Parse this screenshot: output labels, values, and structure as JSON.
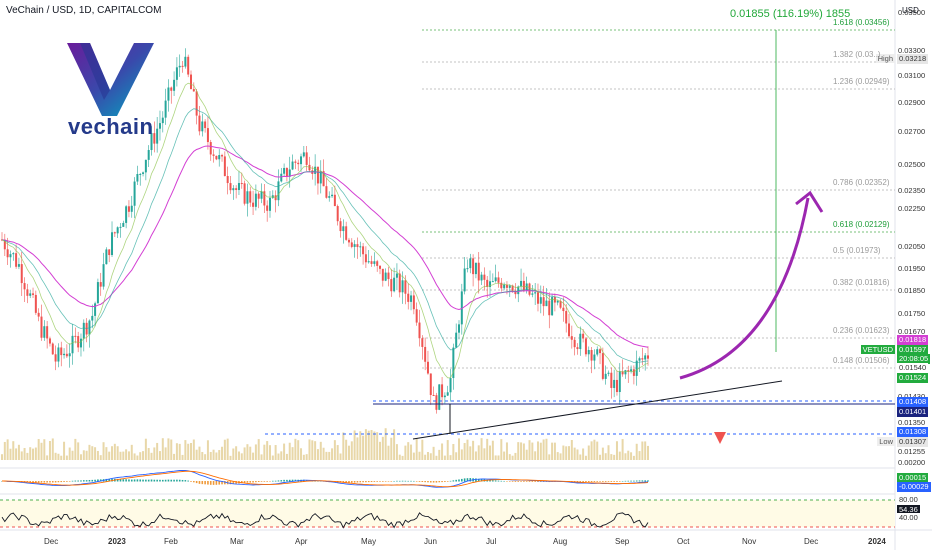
{
  "header": {
    "symbol_title": "VeChain / USD, 1D, CAPITALCOM"
  },
  "logo": {
    "wordmark": "vechain",
    "icon_name": "vechain-v-logo"
  },
  "measure_tool": {
    "label": "0.01855 (116.19%) 1855"
  },
  "price_axis": {
    "unit": "USD",
    "ticks": [
      "0.03500",
      "0.03300",
      "0.03100",
      "0.02900",
      "0.02700",
      "0.02500",
      "0.02350",
      "0.02250",
      "0.02050",
      "0.01950",
      "0.01850",
      "0.01750",
      "0.01670",
      "0.01430",
      "0.01350",
      "0.01255",
      "0.00200"
    ],
    "tags": [
      {
        "text": "0.03218",
        "color": "#e6e6e6",
        "fg": "#333",
        "side": "High"
      },
      {
        "text": "0.01818",
        "color": "#d33fd3",
        "fg": "#ffffff"
      },
      {
        "text": "0.01597",
        "color": "#22ab3e",
        "fg": "#ffffff",
        "side": "VETUSD"
      },
      {
        "text": "20:08:05",
        "color": "#22ab3e",
        "fg": "#ffffff"
      },
      {
        "text": "0.01540",
        "color": "#ffffff",
        "fg": "#333"
      },
      {
        "text": "0.01524",
        "color": "#22ab3e",
        "fg": "#ffffff"
      },
      {
        "text": "0.01408",
        "color": "#2962ff",
        "fg": "#ffffff"
      },
      {
        "text": "0.01401",
        "color": "#1a237e",
        "fg": "#ffffff"
      },
      {
        "text": "0.01308",
        "color": "#2962ff",
        "fg": "#ffffff"
      },
      {
        "text": "0.01307",
        "color": "#e6e6e6",
        "fg": "#333",
        "side": "Low"
      },
      {
        "text": "0.00015",
        "color": "#22ab3e",
        "fg": "#ffffff"
      },
      {
        "text": "-0.00029",
        "color": "#2962ff",
        "fg": "#ffffff"
      },
      {
        "text": "80.00",
        "color": "#ffffff",
        "fg": "#333"
      },
      {
        "text": "54.36",
        "color": "#131722",
        "fg": "#ffffff"
      },
      {
        "text": "40.00",
        "color": "#ffffff",
        "fg": "#333"
      }
    ]
  },
  "fib_levels": [
    {
      "label": "1.618 (0.03456)",
      "color": "green"
    },
    {
      "label": "1.382 (0.03..)",
      "color": "gray"
    },
    {
      "label": "1.236 (0.02949)",
      "color": "gray"
    },
    {
      "label": "0.786 (0.02352)",
      "color": "gray"
    },
    {
      "label": "0.618 (0.02129)",
      "color": "green"
    },
    {
      "label": "0.5 (0.01973)",
      "color": "gray"
    },
    {
      "label": "0.382 (0.01816)",
      "color": "gray"
    },
    {
      "label": "0.236 (0.01623)",
      "color": "gray"
    },
    {
      "label": "0.148 (0.01506)",
      "color": "gray"
    }
  ],
  "time_axis": {
    "labels": [
      "Dec",
      "2023",
      "Feb",
      "Mar",
      "Apr",
      "May",
      "Jun",
      "Jul",
      "Aug",
      "Sep",
      "Oct",
      "Nov",
      "Dec",
      "2024"
    ]
  },
  "chart_data": {
    "type": "line",
    "title": "VeChain / USD, 1D, CAPITALCOM",
    "series": [
      {
        "name": "VETUSD",
        "values": [
          0.0208,
          0.0196,
          0.0172,
          0.0158,
          0.0163,
          0.0175,
          0.0205,
          0.0226,
          0.0252,
          0.0276,
          0.0316,
          0.027,
          0.0252,
          0.0233,
          0.0228,
          0.0226,
          0.0246,
          0.0253,
          0.0231,
          0.0214,
          0.0203,
          0.0192,
          0.0188,
          0.0181,
          0.0143,
          0.0151,
          0.0198,
          0.0186,
          0.019,
          0.0186,
          0.018,
          0.0177,
          0.0165,
          0.0161,
          0.0148,
          0.0154,
          0.016
        ]
      }
    ],
    "x": [
      "Nov 22",
      "Dec 1",
      "Dec 15",
      "Jan 1",
      "Jan 10",
      "Jan 20",
      "Feb 1",
      "Feb 10",
      "Feb 18",
      "Feb 22",
      "Feb 27",
      "Mar 5",
      "Mar 15",
      "Mar 25",
      "Apr 1",
      "Apr 10",
      "Apr 18",
      "Apr 22",
      "May 1",
      "May 10",
      "May 20",
      "May 28",
      "Jun 3",
      "Jun 8",
      "Jun 10",
      "Jun 20",
      "Jul 1",
      "Jul 10",
      "Jul 20",
      "Aug 1",
      "Aug 10",
      "Aug 18",
      "Aug 25",
      "Sep 1",
      "Sep 8",
      "Sep 12",
      "Sep 15"
    ],
    "ylim": [
      0.0125,
      0.035
    ],
    "log_scale": true,
    "grid": false,
    "legend": "right"
  }
}
